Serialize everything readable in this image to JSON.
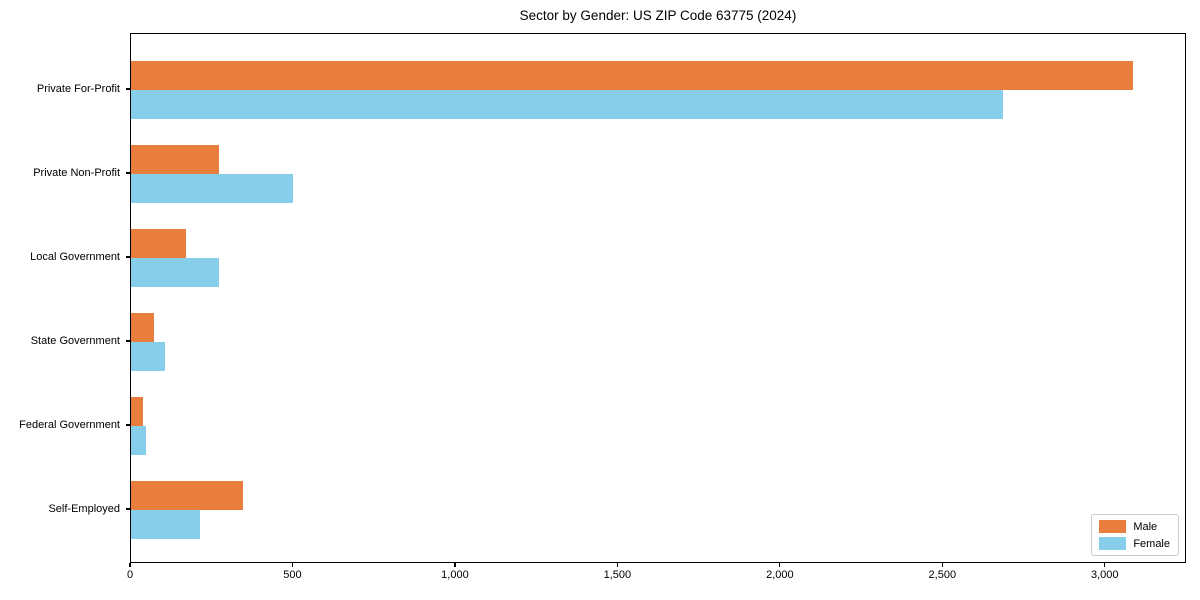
{
  "title": "Sector by Gender: US ZIP Code 63775 (2024)",
  "chart_data": {
    "type": "bar",
    "orientation": "horizontal",
    "title": "Sector by Gender: US ZIP Code 63775 (2024)",
    "categories": [
      "Private For-Profit",
      "Private Non-Profit",
      "Local Government",
      "State Government",
      "Federal Government",
      "Self-Employed"
    ],
    "series": [
      {
        "name": "Male",
        "color": "#e87d3d",
        "values": [
          3090,
          270,
          170,
          72,
          38,
          345
        ]
      },
      {
        "name": "Female",
        "color": "#87ceeb",
        "values": [
          2690,
          500,
          270,
          105,
          46,
          212
        ]
      }
    ],
    "xlabel": "",
    "ylabel": "",
    "xlim": [
      0,
      3250
    ],
    "xticks": [
      0,
      500,
      1000,
      1500,
      2000,
      2500,
      3000
    ],
    "xtick_labels": [
      "0",
      "500",
      "1,000",
      "1,500",
      "2,000",
      "2,500",
      "3,000"
    ],
    "grid": false,
    "legend": {
      "position": "lower right",
      "entries": [
        "Male",
        "Female"
      ]
    }
  }
}
